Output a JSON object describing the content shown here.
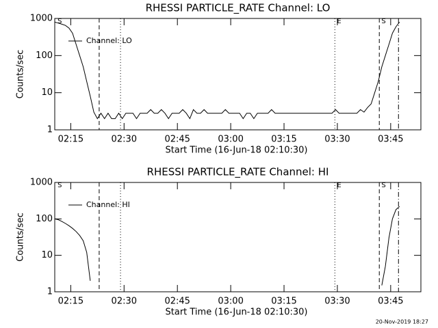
{
  "chart_data": [
    {
      "type": "line",
      "title": "RHESSI PARTICLE_RATE Channel: LO",
      "x_label": "Start Time (16-Jun-18 02:10:30)",
      "y_label": "Counts/sec",
      "ylog": true,
      "ylim": [
        1,
        1000
      ],
      "yticks": [
        1,
        10,
        100,
        1000
      ],
      "xlim": [
        0,
        103
      ],
      "xticks": [
        {
          "value": 4.5,
          "label": "02:15"
        },
        {
          "value": 19.5,
          "label": "02:30"
        },
        {
          "value": 34.5,
          "label": "02:45"
        },
        {
          "value": 49.5,
          "label": "03:00"
        },
        {
          "value": 64.5,
          "label": "03:15"
        },
        {
          "value": 79.5,
          "label": "03:30"
        },
        {
          "value": 94.5,
          "label": "03:45"
        }
      ],
      "legend": "upper left",
      "vlines": [
        {
          "x": 12.5,
          "style": "dashed"
        },
        {
          "x": 18.5,
          "style": "dotted"
        },
        {
          "x": 78.8,
          "style": "dotted"
        },
        {
          "x": 91.3,
          "style": "dashed"
        },
        {
          "x": 96.7,
          "style": "dashdot"
        }
      ],
      "annotations": [
        {
          "x": 0.8,
          "text": "S"
        },
        {
          "x": 79.4,
          "text": "E"
        },
        {
          "x": 91.9,
          "text": "S"
        }
      ],
      "series": [
        {
          "name": "Channel: LO",
          "color": "#000000",
          "x": [
            0,
            1,
            2,
            3,
            4,
            5,
            6,
            7,
            8,
            9,
            10,
            11,
            12,
            13,
            14,
            15,
            16,
            17,
            18,
            19,
            20,
            21,
            22,
            23,
            24,
            25,
            26,
            27,
            28,
            29,
            30,
            31,
            32,
            33,
            34,
            35,
            36,
            37,
            38,
            39,
            40,
            41,
            42,
            43,
            44,
            45,
            46,
            47,
            48,
            49,
            50,
            51,
            52,
            53,
            54,
            55,
            56,
            57,
            58,
            59,
            60,
            61,
            62,
            63,
            64,
            65,
            66,
            67,
            68,
            69,
            70,
            71,
            72,
            73,
            74,
            75,
            76,
            77,
            78,
            79,
            80,
            81,
            82,
            83,
            84,
            85,
            86,
            87,
            88,
            89,
            90,
            91,
            92,
            93,
            94,
            95,
            96,
            97
          ],
          "values": [
            800,
            750,
            700,
            650,
            550,
            400,
            200,
            100,
            50,
            20,
            8,
            3,
            2,
            2.8,
            2,
            2.8,
            2,
            2,
            2.8,
            2,
            2.8,
            2.8,
            2.8,
            2,
            2.8,
            2.8,
            2.8,
            3.5,
            2.8,
            2.8,
            3.5,
            2.8,
            2,
            2.8,
            2.8,
            2.8,
            3.5,
            2.8,
            2,
            3.5,
            2.8,
            2.8,
            3.5,
            2.8,
            2.8,
            2.8,
            2.8,
            2.8,
            3.5,
            2.8,
            2.8,
            2.8,
            2.8,
            2,
            2.8,
            2.8,
            2,
            2.8,
            2.8,
            2.8,
            2.8,
            3.5,
            2.8,
            2.8,
            2.8,
            2.8,
            2.8,
            2.8,
            2.8,
            2.8,
            2.8,
            2.8,
            2.8,
            2.8,
            2.8,
            2.8,
            2.8,
            2.8,
            2.8,
            3.5,
            2.8,
            2.8,
            2.8,
            2.8,
            2.8,
            2.8,
            3.5,
            3,
            4,
            5,
            10,
            20,
            50,
            100,
            200,
            400,
            600,
            800
          ]
        }
      ]
    },
    {
      "type": "line",
      "title": "RHESSI PARTICLE_RATE Channel: HI",
      "x_label": "Start Time (16-Jun-18 02:10:30)",
      "y_label": "Counts/sec",
      "ylog": true,
      "ylim": [
        1,
        1000
      ],
      "yticks": [
        1,
        10,
        100,
        1000
      ],
      "xlim": [
        0,
        103
      ],
      "xticks": [
        {
          "value": 4.5,
          "label": "02:15"
        },
        {
          "value": 19.5,
          "label": "02:30"
        },
        {
          "value": 34.5,
          "label": "02:45"
        },
        {
          "value": 49.5,
          "label": "03:00"
        },
        {
          "value": 64.5,
          "label": "03:15"
        },
        {
          "value": 79.5,
          "label": "03:30"
        },
        {
          "value": 94.5,
          "label": "03:45"
        }
      ],
      "legend": "upper left",
      "vlines": [
        {
          "x": 12.5,
          "style": "dashed"
        },
        {
          "x": 18.5,
          "style": "dotted"
        },
        {
          "x": 78.8,
          "style": "dotted"
        },
        {
          "x": 91.3,
          "style": "dashed"
        },
        {
          "x": 96.7,
          "style": "dashdot"
        }
      ],
      "annotations": [
        {
          "x": 0.8,
          "text": "S"
        },
        {
          "x": 79.4,
          "text": "E"
        },
        {
          "x": 91.9,
          "text": "S"
        }
      ],
      "series": [
        {
          "name": "Channel: HI",
          "color": "#000000",
          "x": [
            0,
            1,
            2,
            3,
            4,
            5,
            6,
            7,
            8,
            9,
            10,
            11,
            92,
            93,
            94,
            95,
            96,
            97
          ],
          "values": [
            100,
            95,
            85,
            75,
            65,
            55,
            45,
            35,
            25,
            12,
            2,
            null,
            1.5,
            5,
            30,
            100,
            180,
            220
          ]
        }
      ]
    }
  ],
  "footer": "20-Nov-2019 18:27"
}
